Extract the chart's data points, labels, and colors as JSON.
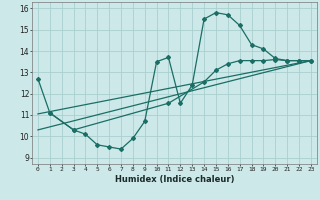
{
  "xlabel": "Humidex (Indice chaleur)",
  "bg_color": "#cce8e8",
  "grid_color": "#aacfcf",
  "line_color": "#1a6e65",
  "xlim": [
    -0.5,
    23.5
  ],
  "ylim": [
    8.7,
    16.3
  ],
  "xticks": [
    0,
    1,
    2,
    3,
    4,
    5,
    6,
    7,
    8,
    9,
    10,
    11,
    12,
    13,
    14,
    15,
    16,
    17,
    18,
    19,
    20,
    21,
    22,
    23
  ],
  "yticks": [
    9,
    10,
    11,
    12,
    13,
    14,
    15,
    16
  ],
  "line1_x": [
    0,
    1,
    3,
    4,
    5,
    6,
    7,
    8,
    9,
    10,
    11,
    12,
    13,
    14,
    15,
    16,
    17,
    18,
    19,
    20,
    21,
    22,
    23
  ],
  "line1_y": [
    12.7,
    11.1,
    10.3,
    10.1,
    9.6,
    9.5,
    9.4,
    9.9,
    10.7,
    13.5,
    13.7,
    11.55,
    12.4,
    15.5,
    15.8,
    15.7,
    15.2,
    14.3,
    14.1,
    13.65,
    13.55,
    13.55,
    13.55
  ],
  "line2_x": [
    1,
    3,
    11,
    14,
    15,
    16,
    17,
    18,
    19,
    20,
    21,
    22,
    23
  ],
  "line2_y": [
    11.1,
    10.3,
    11.55,
    12.55,
    13.1,
    13.4,
    13.55,
    13.55,
    13.55,
    13.6,
    13.55,
    13.55,
    13.55
  ],
  "line3_x": [
    0,
    23
  ],
  "line3_y": [
    10.3,
    13.55
  ],
  "line4_x": [
    0,
    23
  ],
  "line4_y": [
    11.05,
    13.55
  ]
}
